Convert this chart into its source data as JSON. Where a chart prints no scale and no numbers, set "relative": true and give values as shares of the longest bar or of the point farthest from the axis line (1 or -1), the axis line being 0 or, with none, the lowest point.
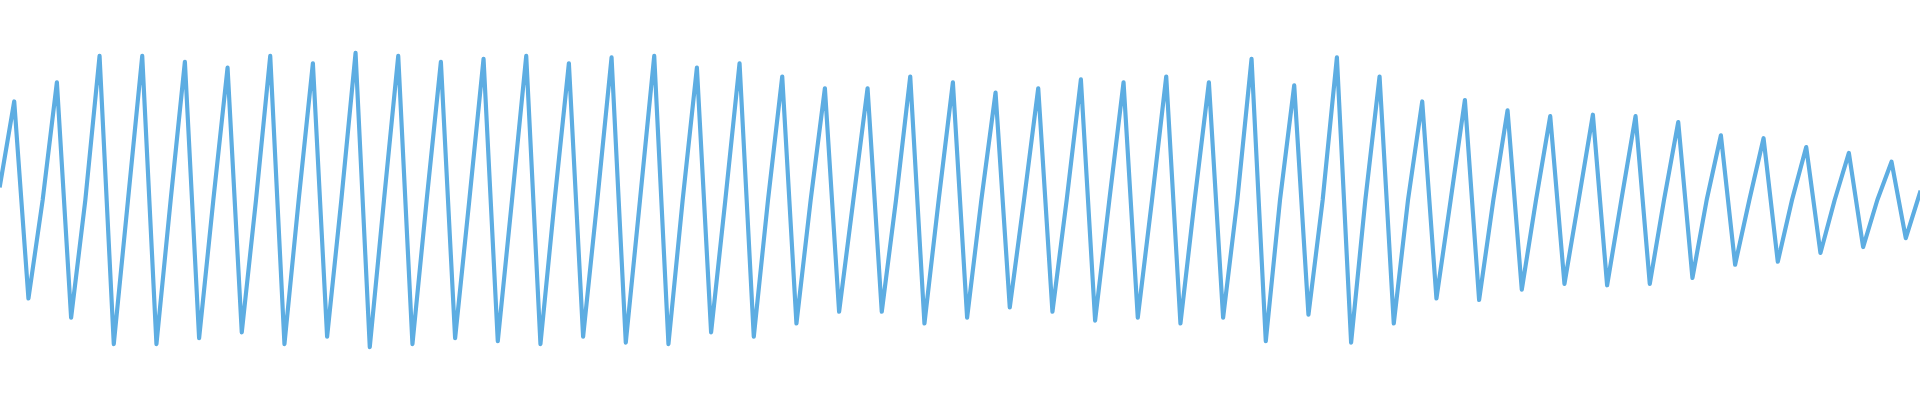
{
  "chart_data": {
    "type": "line",
    "relative": true,
    "categories": [
      null,
      null,
      null,
      null,
      null,
      null,
      null,
      null,
      null,
      null,
      null,
      null,
      null,
      null,
      null,
      null,
      null,
      null,
      null,
      null,
      null,
      null,
      null,
      null,
      null,
      null,
      null,
      null,
      null,
      null,
      null,
      null,
      null,
      null,
      null,
      null,
      null,
      null,
      null,
      null,
      null,
      null,
      null,
      null,
      null,
      null,
      null,
      null,
      null,
      null,
      null,
      null,
      null,
      null,
      null,
      null,
      null,
      null,
      null,
      null,
      null,
      null,
      null,
      null,
      null,
      null,
      null,
      null,
      null,
      null,
      null,
      null,
      null,
      null,
      null,
      null,
      null,
      null,
      null,
      null,
      null,
      null,
      null,
      null,
      null,
      null,
      null,
      null,
      null,
      null,
      null,
      null,
      null,
      null,
      null,
      null,
      null,
      null,
      null,
      null,
      null,
      null,
      null,
      null,
      null,
      null,
      null,
      null,
      null,
      null,
      null,
      null,
      null,
      null,
      null,
      null,
      null,
      null,
      null,
      null,
      null,
      null,
      null,
      null,
      null,
      null,
      null,
      null,
      null,
      null,
      null,
      null,
      null,
      null,
      null,
      null
    ],
    "series": [
      {
        "color": "#5dade2",
        "values": [
          0.55,
          0.835,
          0.165,
          0.5,
          0.9,
          0.1,
          0.5,
          0.99,
          0.01,
          0.5,
          0.99,
          0.01,
          0.5,
          0.97,
          0.03,
          0.5,
          0.95,
          0.05,
          0.5,
          0.99,
          0.01,
          0.5,
          0.965,
          0.035,
          0.5,
          1,
          0,
          0.5,
          0.99,
          0.01,
          0.5,
          0.97,
          0.03,
          0.5,
          0.98,
          0.02,
          0.5,
          0.99,
          0.01,
          0.5,
          0.965,
          0.035,
          0.5,
          0.985,
          0.015,
          0.5,
          0.99,
          0.01,
          0.5,
          0.95,
          0.05,
          0.5,
          0.965,
          0.035,
          0.5,
          0.92,
          0.08,
          0.5,
          0.88,
          0.12,
          0.5,
          0.88,
          0.12,
          0.5,
          0.92,
          0.08,
          0.5,
          0.9,
          0.1,
          0.5,
          0.865,
          0.135,
          0.5,
          0.88,
          0.12,
          0.5,
          0.91,
          0.09,
          0.5,
          0.9,
          0.1,
          0.5,
          0.92,
          0.08,
          0.5,
          0.9,
          0.1,
          0.5,
          0.98,
          0.02,
          0.5,
          0.89,
          0.11,
          0.5,
          0.985,
          0.015,
          0.5,
          0.92,
          0.08,
          0.5,
          0.835,
          0.165,
          0.5,
          0.84,
          0.16,
          0.5,
          0.805,
          0.195,
          0.5,
          0.785,
          0.215,
          0.5,
          0.79,
          0.21,
          0.5,
          0.785,
          0.215,
          0.5,
          0.765,
          0.235,
          0.5,
          0.72,
          0.28,
          0.5,
          0.71,
          0.29,
          0.5,
          0.68,
          0.32,
          0.5,
          0.66,
          0.34,
          0.5,
          0.63,
          0.37,
          0.525
        ]
      }
    ]
  }
}
